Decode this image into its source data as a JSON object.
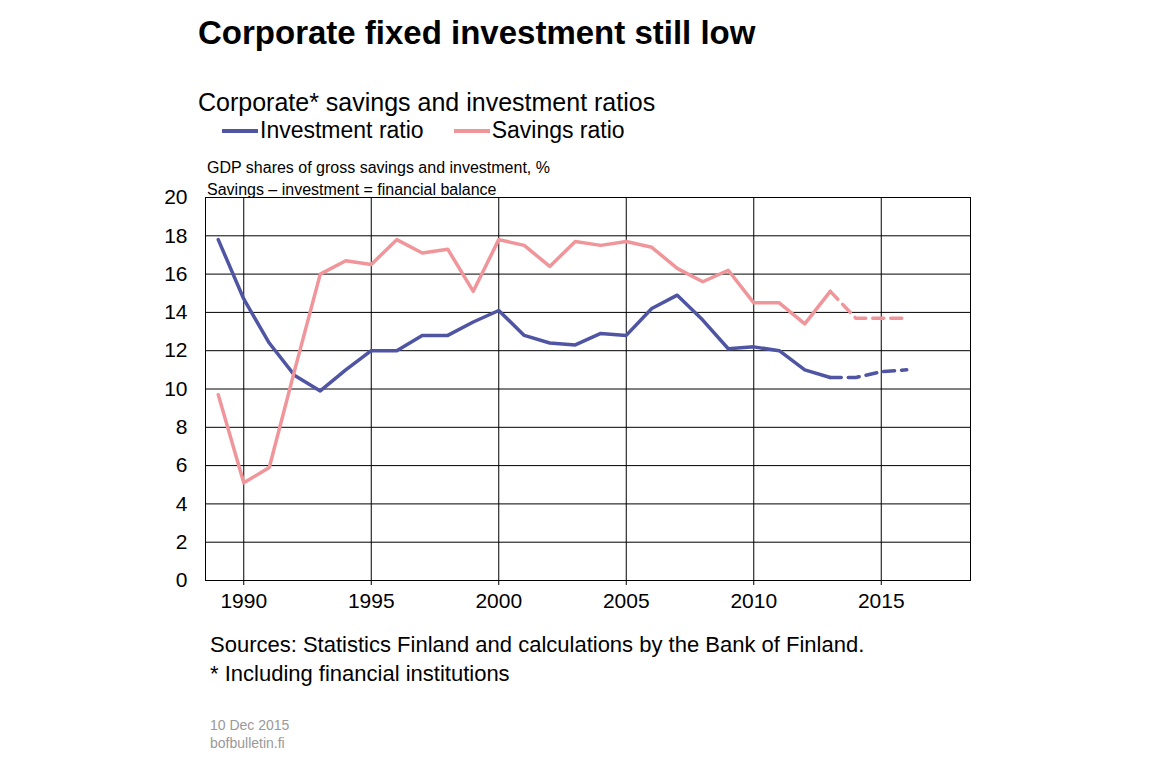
{
  "chart_data": {
    "type": "line",
    "title": "Corporate fixed investment still low",
    "subtitle": "Corporate* savings and investment ratios",
    "ylabel": [
      "GDP shares of gross savings and investment, %",
      "Savings – investment = financial balance"
    ],
    "source": "Sources: Statistics Finland and calculations by the Bank of Finland.",
    "footnote": "* Including financial institutions",
    "date": "10 Dec 2015",
    "site": "bofbulletin.fi",
    "x": [
      1989,
      1990,
      1991,
      1992,
      1993,
      1994,
      1995,
      1996,
      1997,
      1998,
      1999,
      2000,
      2001,
      2002,
      2003,
      2004,
      2005,
      2006,
      2007,
      2008,
      2009,
      2010,
      2011,
      2012,
      2013,
      2014,
      2015,
      2016
    ],
    "series": [
      {
        "name": "Investment ratio",
        "color": "#4f55a3",
        "line_style": "solid",
        "values": [
          17.8,
          14.7,
          12.4,
          10.7,
          9.9,
          11.0,
          12.0,
          12.0,
          12.8,
          12.8,
          13.5,
          14.1,
          12.8,
          12.4,
          12.3,
          12.9,
          12.8,
          14.2,
          14.9,
          13.6,
          12.1,
          12.2,
          12.0,
          11.0,
          10.6,
          null,
          null,
          null
        ]
      },
      {
        "name": "Investment ratio",
        "color": "#4f55a3",
        "line_style": "dashed",
        "values": [
          null,
          null,
          null,
          null,
          null,
          null,
          null,
          null,
          null,
          null,
          null,
          null,
          null,
          null,
          null,
          null,
          null,
          null,
          null,
          null,
          null,
          null,
          null,
          null,
          10.6,
          10.6,
          10.9,
          11.0
        ]
      },
      {
        "name": "Savings ratio",
        "color": "#f0959a",
        "line_style": "solid",
        "values": [
          9.7,
          5.1,
          5.9,
          11.0,
          16.0,
          16.7,
          16.5,
          17.8,
          17.1,
          17.3,
          15.1,
          17.8,
          17.5,
          16.4,
          17.7,
          17.5,
          17.7,
          17.4,
          16.3,
          15.6,
          16.2,
          14.5,
          14.5,
          13.4,
          15.1,
          null,
          null,
          null
        ]
      },
      {
        "name": "Savings ratio",
        "color": "#f0959a",
        "line_style": "dashed",
        "values": [
          null,
          null,
          null,
          null,
          null,
          null,
          null,
          null,
          null,
          null,
          null,
          null,
          null,
          null,
          null,
          null,
          null,
          null,
          null,
          null,
          null,
          null,
          null,
          null,
          15.1,
          13.7,
          13.7,
          13.7
        ]
      }
    ],
    "xlim": [
      1988.5,
      2018.5
    ],
    "xticks": [
      1990,
      1995,
      2000,
      2005,
      2010,
      2015
    ],
    "ylim": [
      0,
      20
    ],
    "yticks": [
      0,
      2,
      4,
      6,
      8,
      10,
      12,
      14,
      16,
      18,
      20
    ],
    "grid": true,
    "legend": "top"
  }
}
